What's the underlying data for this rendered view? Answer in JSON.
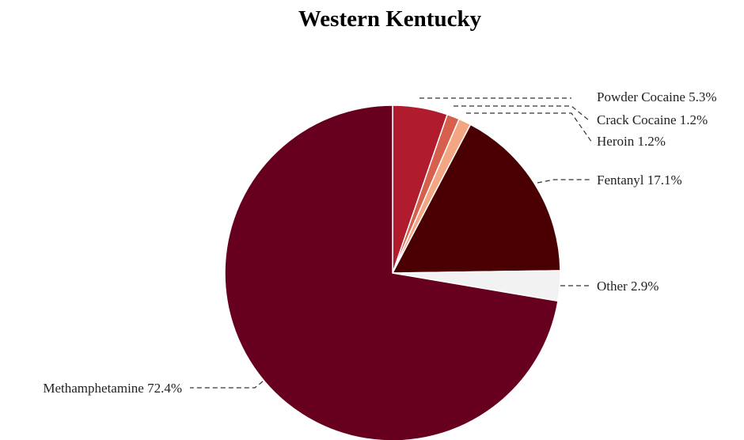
{
  "chart_data": {
    "type": "pie",
    "title": "Western Kentucky",
    "slices": [
      {
        "label": "Powder Cocaine",
        "value": 5.3,
        "display": "Powder Cocaine 5.3%",
        "color": "#b01c2e"
      },
      {
        "label": "Crack Cocaine",
        "value": 1.2,
        "display": "Crack Cocaine 1.2%",
        "color": "#d6604d"
      },
      {
        "label": "Heroin",
        "value": 1.2,
        "display": "Heroin 1.2%",
        "color": "#f4a582"
      },
      {
        "label": "Fentanyl",
        "value": 17.1,
        "display": "Fentanyl 17.1%",
        "color": "#4a0002"
      },
      {
        "label": "Other",
        "value": 2.9,
        "display": "Other 2.9%",
        "color": "#f2f2f2"
      },
      {
        "label": "Methamphetamine",
        "value": 72.4,
        "display": "Methamphetamine 72.4%",
        "color": "#67001f"
      }
    ],
    "start": "12 o'clock",
    "direction": "clockwise",
    "legend": "none"
  }
}
